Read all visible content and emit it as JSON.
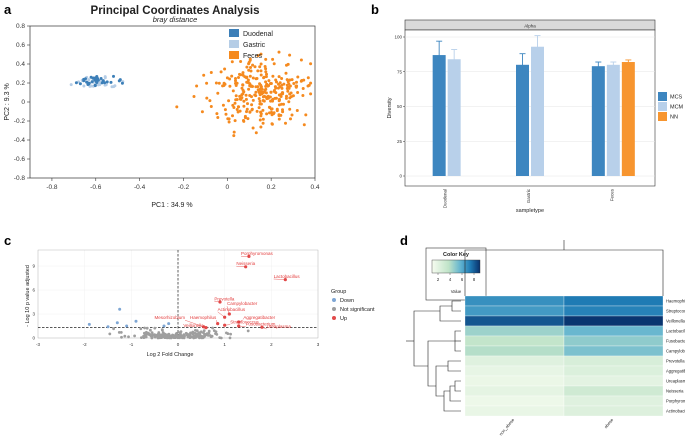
{
  "panel_labels": [
    "a",
    "b",
    "c",
    "d"
  ],
  "colors": {
    "duodenal": "#3c7fb8",
    "gastric": "#b5cde6",
    "feces": "#f58a1f",
    "bar_mcs": "#3d86c0",
    "bar_mcm": "#b8d0ea",
    "bar_nn": "#f7952f",
    "volcano_down": "#7ea6d4",
    "volcano_ns": "#9e9e9e",
    "volcano_up": "#e24a4a",
    "volcano_label": "#e23b3b"
  },
  "chart_data": [
    {
      "type": "scatter",
      "title": "Principal Coordinates Analysis",
      "subtitle": "bray distance",
      "xlabel": "PC1 : 34.9 %",
      "ylabel": "PC2 : 9.3 %",
      "xlim": [
        -0.9,
        0.4
      ],
      "ylim": [
        -0.8,
        0.8
      ],
      "xticks": [
        "-0.8",
        "-0.6",
        "-0.4",
        "-0.2",
        "0",
        "0.2",
        "0.4"
      ],
      "yticks": [
        "-0.8",
        "-0.6",
        "-0.4",
        "-0.2",
        "0",
        "0.2",
        "0.4",
        "0.6",
        "0.8"
      ],
      "legend": [
        "Duodenal",
        "Gastric",
        "Feces"
      ],
      "groups": [
        {
          "name": "Duodenal",
          "center": [
            -0.6,
            0.22
          ],
          "spread": [
            0.035,
            0.025
          ],
          "count": 34,
          "seed": 11
        },
        {
          "name": "Gastric",
          "center": [
            -0.61,
            0.2
          ],
          "spread": [
            0.04,
            0.03
          ],
          "count": 30,
          "seed": 23
        },
        {
          "name": "Feces",
          "center": [
            0.17,
            0.1
          ],
          "spread": [
            0.1,
            0.17
          ],
          "count": 300,
          "seed": 37
        }
      ]
    },
    {
      "type": "bar",
      "strip": "Alpha",
      "xlabel": "sampletype",
      "ylabel": "Diversity",
      "ylim": [
        0,
        100
      ],
      "yticks": [
        "0",
        "25",
        "50",
        "75",
        "100"
      ],
      "categories": [
        "Duodenal",
        "Gastric",
        "Feces"
      ],
      "legend": [
        "MCS",
        "MCM",
        "NN"
      ],
      "series": [
        {
          "name": "MCS",
          "values": [
            87,
            80,
            79
          ],
          "errors": [
            10,
            8,
            3
          ]
        },
        {
          "name": "MCM",
          "values": [
            84,
            93,
            80
          ],
          "errors": [
            7,
            8,
            2
          ]
        },
        {
          "name": "NN",
          "values": [
            null,
            null,
            82
          ],
          "errors": [
            null,
            null,
            1.5
          ]
        }
      ]
    },
    {
      "type": "scatter",
      "xlabel": "Log 2 Fold Change",
      "ylabel": "- Log 10 p value adjusted",
      "xlim": [
        -3,
        3
      ],
      "ylim": [
        0,
        11
      ],
      "xticks": [
        "-3",
        "-2",
        "-1",
        "0",
        "1",
        "2",
        "3"
      ],
      "yticks": [
        "0",
        "3",
        "6",
        "9"
      ],
      "threshold_y": 1.3,
      "legend_title": "Group",
      "legend": [
        "Down",
        "Not significant",
        "Up"
      ],
      "labeled_points": [
        {
          "label": "Porphyromonas",
          "x": 1.52,
          "y": 10.2
        },
        {
          "label": "Neisseria",
          "x": 1.45,
          "y": 8.9
        },
        {
          "label": "Lactobacillus",
          "x": 2.3,
          "y": 7.3
        },
        {
          "label": "Prevotella",
          "x": 0.9,
          "y": 4.5
        },
        {
          "label": "Campylobacter",
          "x": 1.1,
          "y": 3.0
        },
        {
          "label": "Actinobacillus",
          "x": 1.0,
          "y": 2.6
        },
        {
          "label": "Mesorhizobium",
          "x": 0.55,
          "y": 1.4
        },
        {
          "label": "Haemophilus",
          "x": 0.85,
          "y": 1.8
        },
        {
          "label": "Aggregatibacter",
          "x": 1.3,
          "y": 2.0
        },
        {
          "label": "Veillonella",
          "x": 0.6,
          "y": 1.3
        },
        {
          "label": "Streptococcus",
          "x": 1.0,
          "y": 1.6
        },
        {
          "label": "Fusobacterium",
          "x": 1.3,
          "y": 1.5
        },
        {
          "label": "Ureaplasma",
          "x": 1.8,
          "y": 1.35
        }
      ],
      "down_points": [
        [
          -1.9,
          1.7
        ],
        [
          -1.3,
          1.9
        ],
        [
          -1.25,
          3.6
        ],
        [
          -1.1,
          1.5
        ],
        [
          -0.3,
          1.5
        ],
        [
          -0.2,
          1.8
        ],
        [
          -1.5,
          1.4
        ],
        [
          -0.9,
          2.1
        ]
      ],
      "ns_count": 220,
      "ns_seed": 53
    },
    {
      "type": "heatmap",
      "color_key_title": "Color Key",
      "color_key_xlabel": "Value",
      "color_key_ticks": [
        "2",
        "4",
        "6",
        "8"
      ],
      "value_range": [
        1,
        9
      ],
      "rows": [
        "Haemophilus",
        "Streptococcus",
        "Veillonella",
        "Lactobacillus",
        "Fusobacterium",
        "Campylobacter",
        "Prevotella",
        "Aggregatibacter",
        "Ureaplasma",
        "Neisseria",
        "Porphyromonas",
        "Actinobacillus"
      ],
      "columns": [
        "non_obese",
        "obese"
      ],
      "values": [
        [
          6.8,
          7.4
        ],
        [
          6.5,
          7.2
        ],
        [
          8.2,
          8.9
        ],
        [
          4.5,
          5.6
        ],
        [
          3.6,
          4.8
        ],
        [
          4.0,
          5.2
        ],
        [
          2.2,
          2.6
        ],
        [
          1.8,
          2.4
        ],
        [
          1.6,
          2.0
        ],
        [
          1.9,
          3.0
        ],
        [
          1.5,
          2.2
        ],
        [
          1.7,
          2.3
        ]
      ]
    }
  ]
}
